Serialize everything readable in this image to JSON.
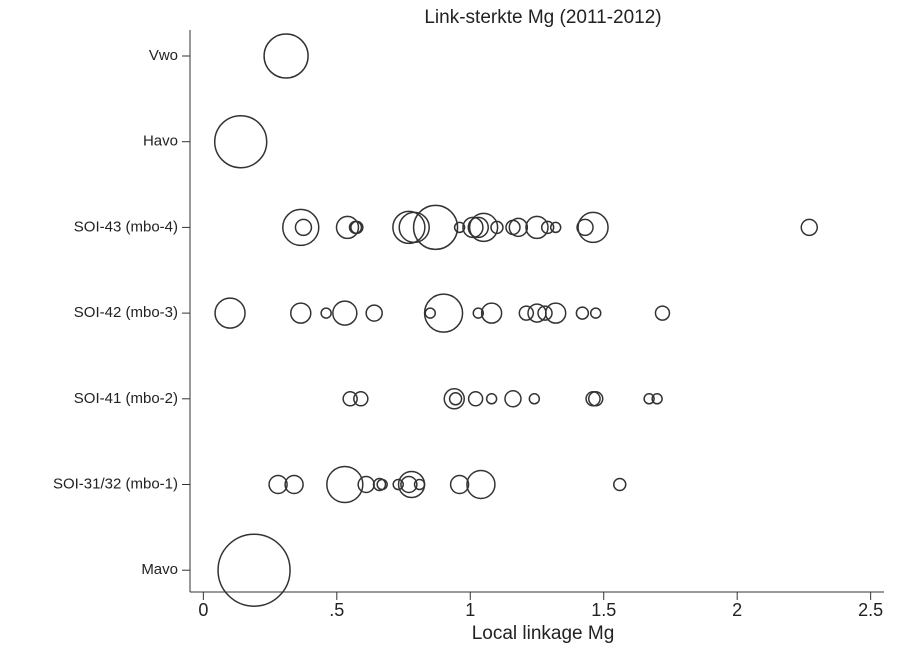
{
  "chart_data": {
    "type": "bubble",
    "title": "Link-sterkte Mg (2011-2012)",
    "x_label": "Local linkage Mg",
    "xlim": [
      -0.05,
      2.55
    ],
    "xticks": [
      0,
      {
        "value": 0.5,
        "label": ".5"
      },
      1,
      1.5,
      2,
      2.5
    ],
    "color": "#333333",
    "series": [
      {
        "name": "Vwo",
        "values": [
          0.31
        ],
        "sizes": [
          22
        ]
      },
      {
        "name": "Havo",
        "values": [
          0.14
        ],
        "sizes": [
          26
        ]
      },
      {
        "name": "SOI-43 (mbo-4)",
        "values": [
          0.365,
          0.375,
          0.54,
          0.57,
          0.575,
          0.77,
          0.79,
          0.87,
          0.96,
          1.01,
          1.03,
          1.05,
          1.1,
          1.16,
          1.18,
          1.25,
          1.29,
          1.32,
          1.43,
          1.46,
          2.27
        ],
        "sizes": [
          18,
          8,
          11,
          6,
          6,
          16,
          15,
          22,
          5,
          10,
          10,
          14,
          6,
          7,
          9,
          11,
          6,
          5,
          8,
          15,
          8
        ]
      },
      {
        "name": "SOI-42 (mbo-3)",
        "values": [
          0.1,
          0.365,
          0.46,
          0.53,
          0.64,
          0.85,
          0.9,
          1.03,
          1.08,
          1.21,
          1.25,
          1.28,
          1.32,
          1.42,
          1.47,
          1.72
        ],
        "sizes": [
          15,
          10,
          5,
          12,
          8,
          5,
          19,
          5,
          10,
          7,
          9,
          7,
          10,
          6,
          5,
          7
        ]
      },
      {
        "name": "SOI-41 (mbo-2)",
        "values": [
          0.55,
          0.59,
          0.94,
          0.945,
          1.02,
          1.08,
          1.16,
          1.24,
          1.46,
          1.47,
          1.67,
          1.7
        ],
        "sizes": [
          7,
          7,
          10,
          6,
          7,
          5,
          8,
          5,
          7,
          7,
          5,
          5
        ]
      },
      {
        "name": "SOI-31/32 (mbo-1)",
        "values": [
          0.28,
          0.34,
          0.53,
          0.61,
          0.66,
          0.67,
          0.73,
          0.77,
          0.78,
          0.81,
          0.96,
          1.04,
          1.56
        ],
        "sizes": [
          9,
          9,
          18,
          8,
          6,
          5,
          5,
          8,
          13,
          5,
          9,
          14,
          6
        ]
      },
      {
        "name": "Mavo",
        "values": [
          0.19
        ],
        "sizes": [
          36
        ]
      }
    ]
  }
}
